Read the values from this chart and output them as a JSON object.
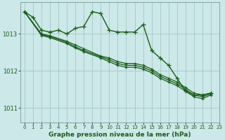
{
  "bg_color": "#cce8e8",
  "grid_color": "#aacccc",
  "line_color": "#1a5c1a",
  "title": "Graphe pression niveau de la mer (hPa)",
  "xlim": [
    -0.5,
    23
  ],
  "ylim": [
    1010.6,
    1013.85
  ],
  "yticks": [
    1011,
    1012,
    1013
  ],
  "xticks": [
    0,
    1,
    2,
    3,
    4,
    5,
    6,
    7,
    8,
    9,
    10,
    11,
    12,
    13,
    14,
    15,
    16,
    17,
    18,
    19,
    20,
    21,
    22,
    23
  ],
  "series": [
    {
      "x": [
        0,
        1,
        2,
        3,
        4,
        5,
        6,
        7,
        8,
        9,
        10,
        11,
        12,
        13,
        14,
        15,
        16,
        17,
        18,
        19,
        20,
        21,
        22
      ],
      "y": [
        1013.6,
        1013.45,
        1013.1,
        1013.05,
        1013.1,
        1013.0,
        1013.15,
        1013.2,
        1013.6,
        1013.55,
        1013.1,
        1013.05,
        1013.05,
        1013.05,
        1013.25,
        1012.55,
        1012.35,
        1012.15,
        1011.8,
        1011.45,
        1011.35,
        1011.35,
        1011.4
      ],
      "lw": 1.0,
      "marker_size": 4.0,
      "zorder": 6
    },
    {
      "x": [
        0,
        2,
        3,
        5,
        6,
        7,
        9,
        10,
        11,
        12,
        13,
        14,
        15,
        16,
        17,
        18,
        19,
        20,
        21,
        22
      ],
      "y": [
        1013.6,
        1013.0,
        1012.95,
        1012.8,
        1012.7,
        1012.6,
        1012.4,
        1012.35,
        1012.25,
        1012.2,
        1012.2,
        1012.15,
        1012.05,
        1011.9,
        1011.8,
        1011.7,
        1011.55,
        1011.4,
        1011.35,
        1011.4
      ],
      "lw": 0.9,
      "marker_size": 3.0,
      "zorder": 4
    },
    {
      "x": [
        0,
        2,
        3,
        5,
        6,
        7,
        9,
        10,
        11,
        12,
        13,
        14,
        15,
        16,
        17,
        18,
        19,
        20,
        21,
        22
      ],
      "y": [
        1013.6,
        1012.98,
        1012.93,
        1012.77,
        1012.65,
        1012.55,
        1012.38,
        1012.3,
        1012.2,
        1012.15,
        1012.15,
        1012.1,
        1012.0,
        1011.85,
        1011.75,
        1011.65,
        1011.5,
        1011.35,
        1011.3,
        1011.38
      ],
      "lw": 0.9,
      "marker_size": 3.0,
      "zorder": 3
    },
    {
      "x": [
        0,
        2,
        3,
        5,
        6,
        7,
        9,
        10,
        11,
        12,
        13,
        14,
        15,
        16,
        17,
        18,
        19,
        20,
        21,
        22
      ],
      "y": [
        1013.6,
        1012.96,
        1012.9,
        1012.74,
        1012.62,
        1012.52,
        1012.35,
        1012.25,
        1012.15,
        1012.1,
        1012.1,
        1012.05,
        1011.95,
        1011.8,
        1011.7,
        1011.6,
        1011.45,
        1011.3,
        1011.25,
        1011.35
      ],
      "lw": 0.9,
      "marker_size": 3.0,
      "zorder": 2
    }
  ]
}
